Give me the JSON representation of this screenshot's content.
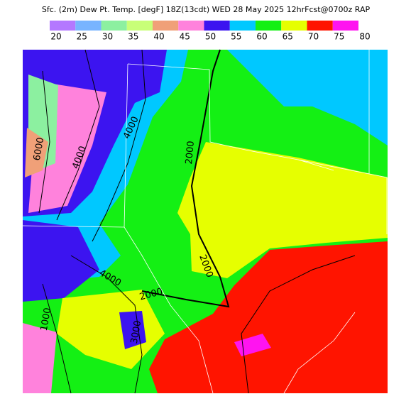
{
  "title": "Sfc. (2m) Dew Pt. Temp. [degF] 18Z(13cdt) WED 28 May 2025 12hrFcst@0700z RAP",
  "colorbar": {
    "ticks": [
      20,
      25,
      30,
      35,
      40,
      45,
      50,
      55,
      60,
      65,
      70,
      75,
      80
    ],
    "colors": [
      "#b478ff",
      "#78b4ff",
      "#8cf0a0",
      "#c8ff78",
      "#f0a078",
      "#ff82dc",
      "#3c14f0",
      "#00c8ff",
      "#14f014",
      "#e6ff00",
      "#ff1400",
      "#ff14f0"
    ]
  },
  "contour_labels": [
    "6000",
    "4000",
    "4000",
    "2000",
    "2000",
    "4000",
    "2000",
    "1000",
    "3000"
  ]
}
